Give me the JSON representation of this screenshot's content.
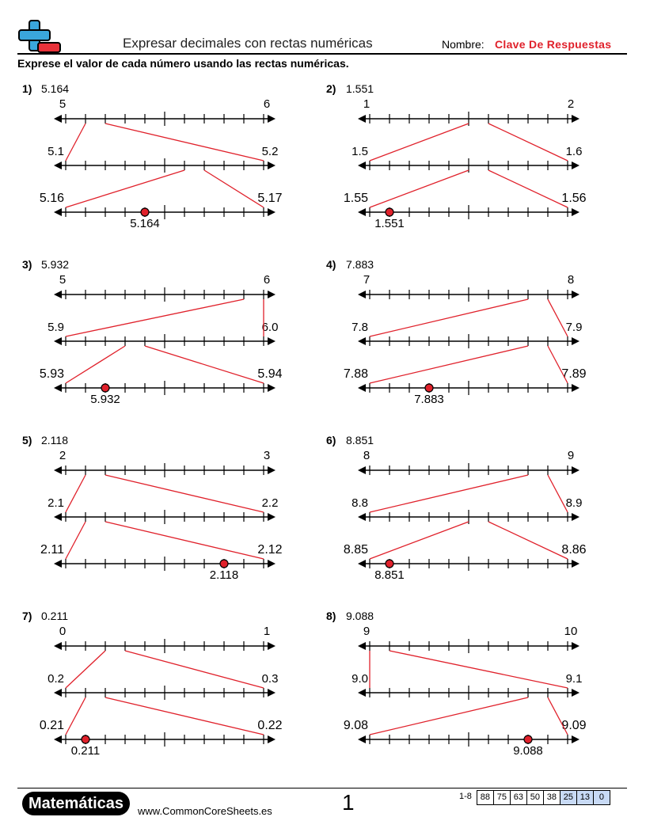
{
  "header": {
    "title": "Expresar decimales con rectas numéricas",
    "name_label": "Nombre:",
    "name_value": "Clave De Respuestas",
    "instructions": "Exprese el valor de cada número usando las rectas numéricas."
  },
  "problems": [
    {
      "num": "1)",
      "value": "5.164",
      "l1": [
        "5",
        "6"
      ],
      "l2": [
        "5.1",
        "5.2"
      ],
      "l3": [
        "5.16",
        "5.17"
      ],
      "answer": "5.164",
      "t1": 1,
      "t2": 6,
      "t3": 4
    },
    {
      "num": "2)",
      "value": "1.551",
      "l1": [
        "1",
        "2"
      ],
      "l2": [
        "1.5",
        "1.6"
      ],
      "l3": [
        "1.55",
        "1.56"
      ],
      "answer": "1.551",
      "t1": 5,
      "t2": 5,
      "t3": 1
    },
    {
      "num": "3)",
      "value": "5.932",
      "l1": [
        "5",
        "6"
      ],
      "l2": [
        "5.9",
        "6.0"
      ],
      "l3": [
        "5.93",
        "5.94"
      ],
      "answer": "5.932",
      "t1": 9,
      "t2": 3,
      "t3": 2
    },
    {
      "num": "4)",
      "value": "7.883",
      "l1": [
        "7",
        "8"
      ],
      "l2": [
        "7.8",
        "7.9"
      ],
      "l3": [
        "7.88",
        "7.89"
      ],
      "answer": "7.883",
      "t1": 8,
      "t2": 8,
      "t3": 3
    },
    {
      "num": "5)",
      "value": "2.118",
      "l1": [
        "2",
        "3"
      ],
      "l2": [
        "2.1",
        "2.2"
      ],
      "l3": [
        "2.11",
        "2.12"
      ],
      "answer": "2.118",
      "t1": 1,
      "t2": 1,
      "t3": 8
    },
    {
      "num": "6)",
      "value": "8.851",
      "l1": [
        "8",
        "9"
      ],
      "l2": [
        "8.8",
        "8.9"
      ],
      "l3": [
        "8.85",
        "8.86"
      ],
      "answer": "8.851",
      "t1": 8,
      "t2": 5,
      "t3": 1
    },
    {
      "num": "7)",
      "value": "0.211",
      "l1": [
        "0",
        "1"
      ],
      "l2": [
        "0.2",
        "0.3"
      ],
      "l3": [
        "0.21",
        "0.22"
      ],
      "answer": "0.211",
      "t1": 2,
      "t2": 1,
      "t3": 1
    },
    {
      "num": "8)",
      "value": "9.088",
      "l1": [
        "9",
        "10"
      ],
      "l2": [
        "9.0",
        "9.1"
      ],
      "l3": [
        "9.08",
        "9.09"
      ],
      "answer": "9.088",
      "t1": 0,
      "t2": 8,
      "t3": 8
    }
  ],
  "footer": {
    "brand": "Matemáticas",
    "site": "www.CommonCoreSheets.es",
    "page": "1",
    "range_label": "1-8",
    "scores": [
      "88",
      "75",
      "63",
      "50",
      "38",
      "25",
      "13",
      "0"
    ]
  },
  "colors": {
    "accent": "#e0212b",
    "logo_blue": "#3aa6dc",
    "logo_red": "#e8323a",
    "score_blue": "#c8daf5"
  }
}
